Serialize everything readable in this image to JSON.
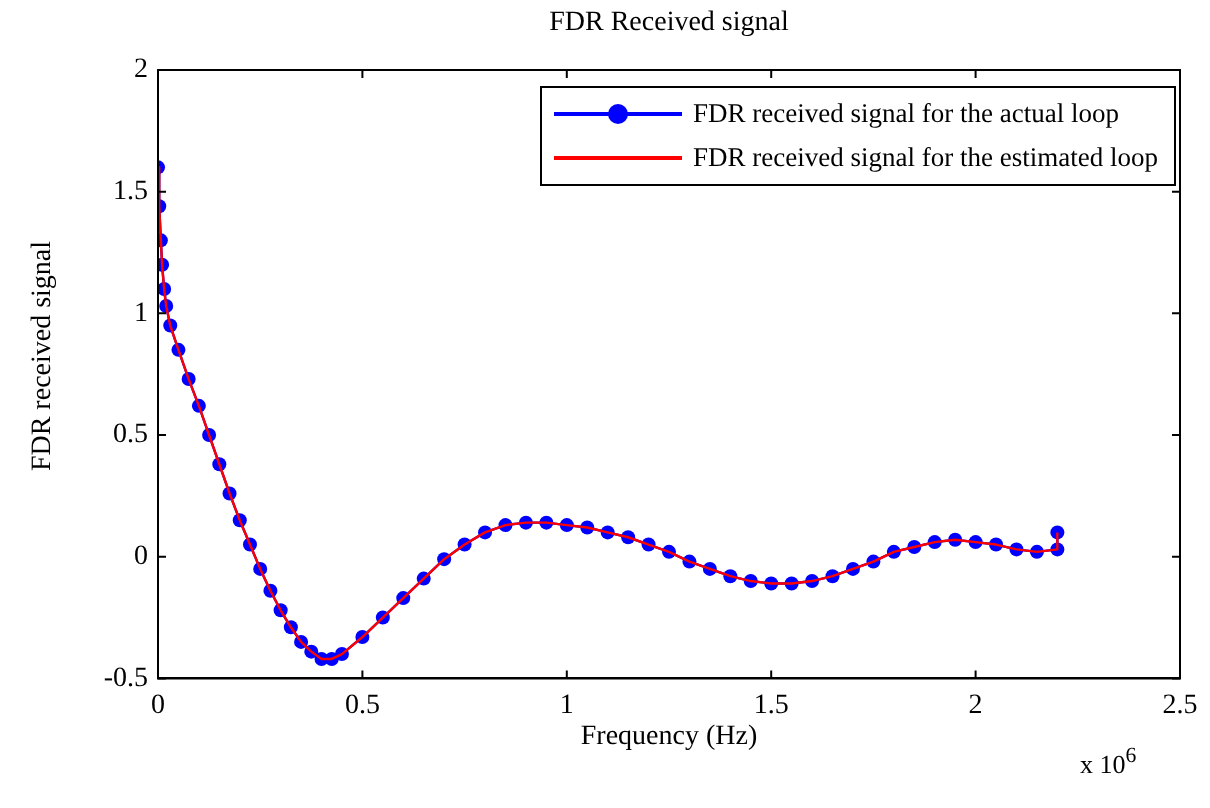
{
  "chart_data": {
    "type": "line",
    "title": "FDR Received signal",
    "xlabel": "Frequency (Hz)",
    "ylabel": "FDR received signal",
    "x": [
      0,
      0.003,
      0.007,
      0.01,
      0.015,
      0.02,
      0.03,
      0.05,
      0.075,
      0.1,
      0.125,
      0.15,
      0.175,
      0.2,
      0.225,
      0.25,
      0.275,
      0.3,
      0.325,
      0.35,
      0.375,
      0.4,
      0.425,
      0.45,
      0.5,
      0.55,
      0.6,
      0.65,
      0.7,
      0.75,
      0.8,
      0.85,
      0.9,
      0.95,
      1.0,
      1.05,
      1.1,
      1.15,
      1.2,
      1.25,
      1.3,
      1.35,
      1.4,
      1.45,
      1.5,
      1.55,
      1.6,
      1.65,
      1.7,
      1.75,
      1.8,
      1.85,
      1.9,
      1.95,
      2.0,
      2.05,
      2.1,
      2.15,
      2.2,
      2.2
    ],
    "series": [
      {
        "name": "FDR received signal for the actual loop",
        "color": "#0000ff",
        "marker": "circle",
        "values": [
          1.6,
          1.44,
          1.3,
          1.2,
          1.1,
          1.03,
          0.95,
          0.85,
          0.73,
          0.62,
          0.5,
          0.38,
          0.26,
          0.15,
          0.05,
          -0.05,
          -0.14,
          -0.22,
          -0.29,
          -0.35,
          -0.39,
          -0.42,
          -0.42,
          -0.4,
          -0.33,
          -0.25,
          -0.17,
          -0.09,
          -0.01,
          0.05,
          0.1,
          0.13,
          0.14,
          0.14,
          0.13,
          0.12,
          0.1,
          0.08,
          0.05,
          0.02,
          -0.02,
          -0.05,
          -0.08,
          -0.1,
          -0.11,
          -0.11,
          -0.1,
          -0.08,
          -0.05,
          -0.02,
          0.02,
          0.04,
          0.06,
          0.07,
          0.06,
          0.05,
          0.03,
          0.02,
          0.03,
          0.1
        ]
      },
      {
        "name": "FDR received signal for the estimated loop",
        "color": "#ff0000",
        "marker": "none",
        "values": [
          1.6,
          1.44,
          1.3,
          1.2,
          1.1,
          1.03,
          0.95,
          0.85,
          0.73,
          0.62,
          0.5,
          0.38,
          0.26,
          0.15,
          0.05,
          -0.05,
          -0.14,
          -0.22,
          -0.29,
          -0.35,
          -0.39,
          -0.42,
          -0.42,
          -0.4,
          -0.33,
          -0.25,
          -0.17,
          -0.09,
          -0.01,
          0.05,
          0.1,
          0.13,
          0.14,
          0.14,
          0.13,
          0.12,
          0.1,
          0.08,
          0.05,
          0.02,
          -0.02,
          -0.05,
          -0.08,
          -0.1,
          -0.11,
          -0.11,
          -0.1,
          -0.08,
          -0.05,
          -0.02,
          0.02,
          0.04,
          0.06,
          0.07,
          0.06,
          0.05,
          0.03,
          0.02,
          0.03,
          0.1
        ]
      }
    ],
    "xlim": [
      0,
      2.5
    ],
    "xticks": [
      0,
      0.5,
      1,
      1.5,
      2,
      2.5
    ],
    "ylim": [
      -0.5,
      2
    ],
    "yticks": [
      -0.5,
      0,
      0.5,
      1,
      1.5,
      2
    ],
    "grid": false,
    "legend": "top right",
    "line_style": "solid",
    "annotations": [
      "x 10$^{6}$"
    ]
  }
}
